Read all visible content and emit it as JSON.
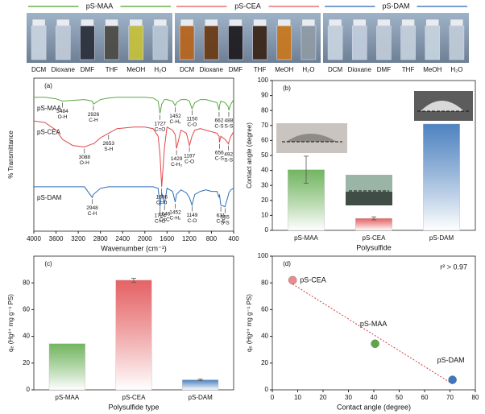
{
  "photo_strip": {
    "groups": [
      {
        "name": "pS-MAA",
        "color": "#6ab04c",
        "solvents": [
          "DCM",
          "Dioxane",
          "DMF",
          "THF",
          "MeOH",
          "H₂O"
        ]
      },
      {
        "name": "pS-CEA",
        "color": "#e8706e",
        "solvents": [
          "DCM",
          "Dioxane",
          "DMF",
          "THF",
          "MeOH",
          "H₂O"
        ]
      },
      {
        "name": "pS-DAM",
        "color": "#4a7fc1",
        "solvents": [
          "DCM",
          "Dioxane",
          "DMF",
          "THF",
          "MeOH",
          "H₂O"
        ]
      }
    ]
  },
  "chart_data": [
    {
      "type": "line",
      "panel_label": "(a)",
      "x_label": "Wavenumber (cm⁻¹)",
      "y_label": "% Transmittance",
      "xlim": [
        4000,
        400
      ],
      "xticks": [
        4000,
        3600,
        3200,
        2800,
        2400,
        2000,
        1600,
        1200,
        800,
        400
      ],
      "ylim": [
        0,
        100
      ],
      "x": [
        4000,
        3800,
        3600,
        3484,
        3300,
        3088,
        2948,
        2926,
        2800,
        2653,
        2500,
        2200,
        2000,
        1850,
        1760,
        1727,
        1696,
        1646,
        1600,
        1500,
        1452,
        1429,
        1350,
        1250,
        1197,
        1150,
        1100,
        1000,
        900,
        800,
        700,
        662,
        656,
        631,
        555,
        492,
        488,
        450,
        400
      ],
      "series": [
        {
          "name": "pS-MAA",
          "color": "#5aa845",
          "values": [
            87.5,
            87.5,
            86.5,
            85,
            85.5,
            86,
            85,
            83,
            86,
            87,
            87.5,
            87.5,
            87.5,
            87,
            85,
            77,
            83,
            86,
            86,
            85,
            82,
            84,
            86,
            86,
            85,
            80,
            84,
            86,
            86,
            85,
            84,
            79,
            82,
            85,
            84,
            81,
            79,
            83,
            86
          ]
        },
        {
          "name": "pS-CEA",
          "color": "#e0474a",
          "values": [
            72,
            71,
            66,
            60,
            56,
            55,
            57,
            57,
            61,
            64,
            67,
            68,
            68,
            67,
            62,
            50,
            29,
            55,
            68,
            66,
            63,
            54,
            66,
            64,
            56,
            62,
            66,
            67,
            66,
            65,
            64,
            62,
            58,
            62,
            60,
            57,
            58,
            62,
            65
          ]
        },
        {
          "name": "pS-DAM",
          "color": "#2f6db5",
          "values": [
            29,
            29,
            29,
            29,
            29,
            29,
            22,
            24,
            28,
            29,
            29,
            29,
            29,
            29,
            28,
            16,
            25,
            18,
            28,
            26,
            19,
            24,
            27,
            25,
            22,
            17,
            24,
            26,
            27,
            26,
            26,
            22,
            24,
            17,
            16,
            24,
            25,
            27,
            28
          ]
        }
      ],
      "annotations": [
        {
          "series": 0,
          "value": 3484,
          "bond": "O-H"
        },
        {
          "series": 0,
          "value": 2926,
          "bond": "C-H"
        },
        {
          "series": 0,
          "value": 1727,
          "bond": "C=O"
        },
        {
          "series": 0,
          "value": 1452,
          "bond": "C-H₂"
        },
        {
          "series": 0,
          "value": 1150,
          "bond": "C-O"
        },
        {
          "series": 0,
          "value": 662,
          "bond": "C-S"
        },
        {
          "series": 0,
          "value": 488,
          "bond": "S-S"
        },
        {
          "series": 1,
          "value": 3088,
          "bond": "O-H"
        },
        {
          "series": 1,
          "value": 2653,
          "bond": "S-H"
        },
        {
          "series": 1,
          "value": 1696,
          "bond": "C=O"
        },
        {
          "series": 1,
          "value": 1429,
          "bond": "C-H₂"
        },
        {
          "series": 1,
          "value": 1197,
          "bond": "C-O"
        },
        {
          "series": 1,
          "value": 656,
          "bond": "C-S"
        },
        {
          "series": 1,
          "value": 492,
          "bond": "S-S"
        },
        {
          "series": 2,
          "value": 2948,
          "bond": "C-H"
        },
        {
          "series": 2,
          "value": 1724,
          "bond": "C=O"
        },
        {
          "series": 2,
          "value": 1646,
          "bond": "C=C"
        },
        {
          "series": 2,
          "value": 1452,
          "bond": "C-H₂"
        },
        {
          "series": 2,
          "value": 1149,
          "bond": "C-O"
        },
        {
          "series": 2,
          "value": 631,
          "bond": "C-S"
        },
        {
          "series": 2,
          "value": 555,
          "bond": "S-S"
        }
      ]
    },
    {
      "type": "bar",
      "panel_label": "(b)",
      "x_label": "Polysulfide",
      "y_label": "Contact angle (degree)",
      "categories": [
        "pS-MAA",
        "pS-CEA",
        "pS-DAM"
      ],
      "values": [
        40.5,
        8,
        71
      ],
      "errors": [
        9,
        1,
        null
      ],
      "colors": [
        "#5aa845",
        "#e0474a",
        "#2f6db5"
      ],
      "ylim": [
        0,
        100
      ],
      "yticks": [
        0,
        10,
        20,
        30,
        40,
        50,
        60,
        70,
        80,
        90,
        100
      ]
    },
    {
      "type": "bar",
      "panel_label": "(c)",
      "x_label": "Polysulfide type",
      "y_label": "qₑ (Hg²⁺ mg g⁻¹ PS)",
      "categories": [
        "pS-MAA",
        "pS-CEA",
        "pS-DAM"
      ],
      "values": [
        34.5,
        82,
        7.5
      ],
      "errors": [
        null,
        1.5,
        0.5
      ],
      "colors": [
        "#5aa845",
        "#e0474a",
        "#2f6db5"
      ],
      "ylim": [
        0,
        100
      ],
      "yticks": [
        0,
        20,
        40,
        60,
        80
      ]
    },
    {
      "type": "scatter",
      "panel_label": "(d)",
      "x_label": "Contact angle (degree)",
      "y_label": "qₑ (Hg²⁺ mg g⁻¹ PS)",
      "annotation": "r² > 0.97",
      "trend_color": "#d04040",
      "points": [
        {
          "name": "pS-CEA",
          "x": 8,
          "y": 82,
          "color": "#f08a8a"
        },
        {
          "name": "pS-MAA",
          "x": 40.5,
          "y": 34.5,
          "color": "#5aa845"
        },
        {
          "name": "pS-DAM",
          "x": 71,
          "y": 7.5,
          "color": "#3a78c0"
        }
      ],
      "xlim": [
        0,
        80
      ],
      "xticks": [
        0,
        10,
        20,
        30,
        40,
        50,
        60,
        70,
        80
      ],
      "ylim": [
        0,
        100
      ],
      "yticks": [
        0,
        20,
        40,
        60,
        80,
        100
      ]
    }
  ]
}
